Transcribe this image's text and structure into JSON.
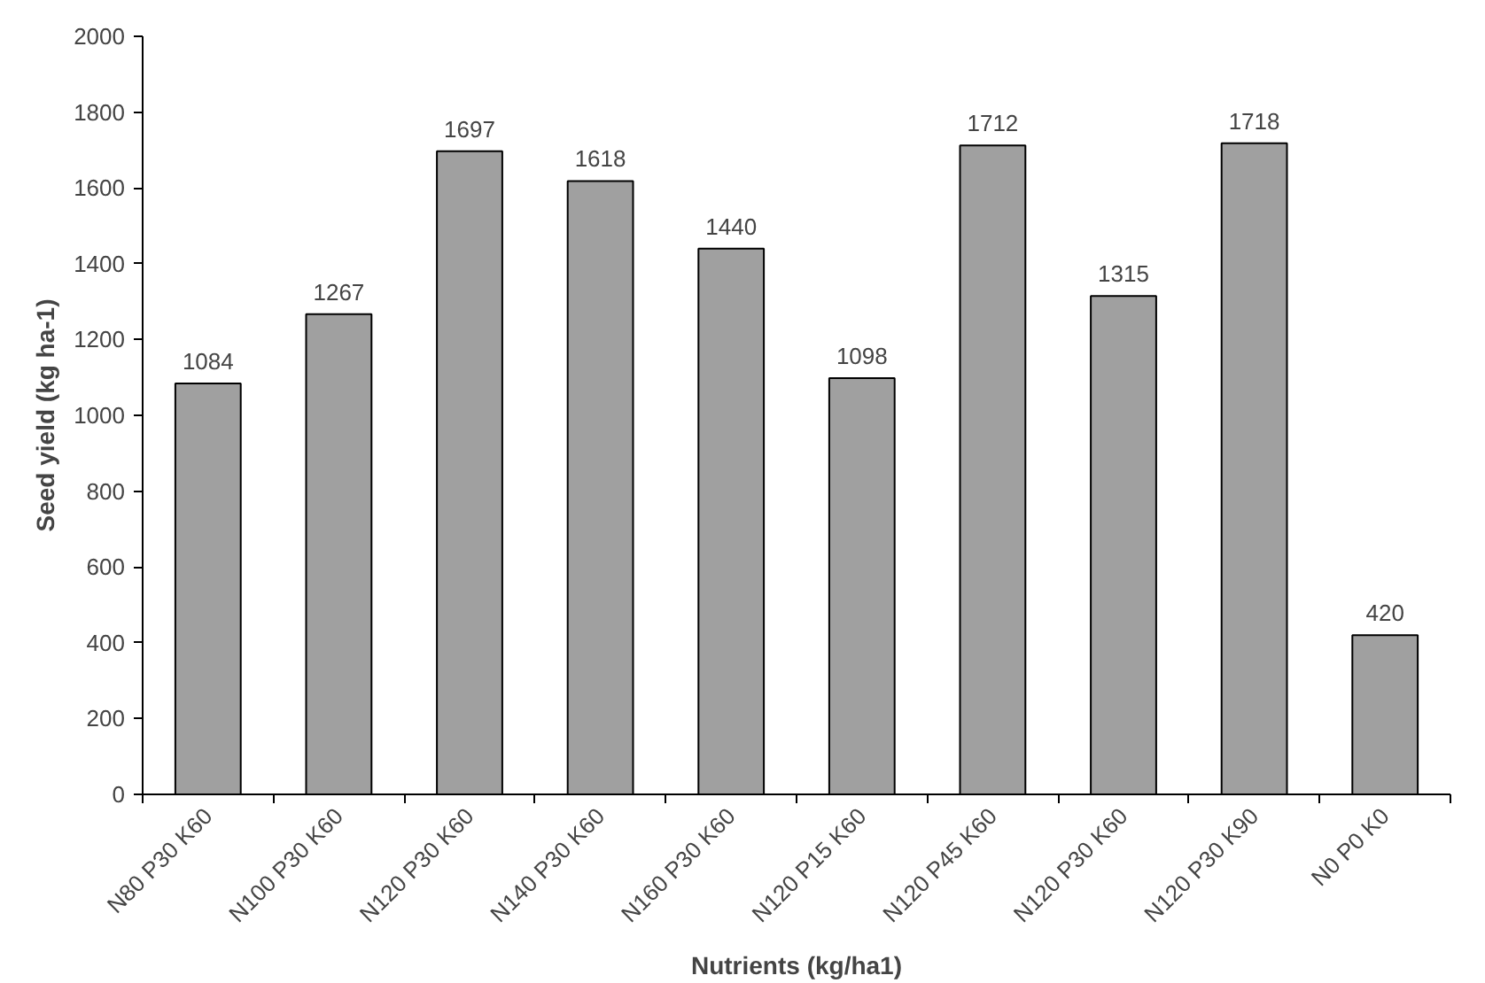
{
  "chart_data": {
    "type": "bar",
    "xlabel": "Nutrients (kg/ha1)",
    "ylabel": "Seed yield (kg ha-1)",
    "categories": [
      "N80 P30 K60",
      "N100 P30 K60",
      "N120 P30 K60",
      "N140 P30 K60",
      "N160 P30 K60",
      "N120 P15 K60",
      "N120 P45 K60",
      "N120 P30 K60",
      "N120 P30 K90",
      "N0 P0 K0"
    ],
    "values": [
      1084,
      1267,
      1697,
      1618,
      1440,
      1098,
      1712,
      1315,
      1718,
      420
    ],
    "color": "#a0a0a0",
    "ylim": [
      0,
      2000
    ],
    "yticks": [
      0,
      200,
      400,
      600,
      800,
      1000,
      1200,
      1400,
      1600,
      1800,
      2000
    ],
    "data_labels": true,
    "grid": false
  }
}
